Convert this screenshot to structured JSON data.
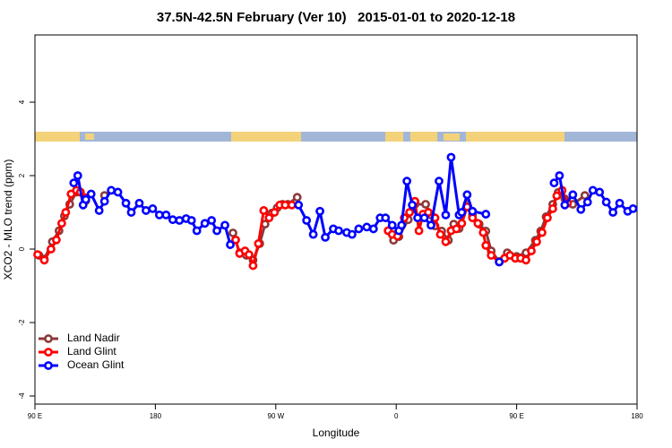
{
  "chart_data": {
    "type": "line",
    "title": "37.5N-42.5N February (Ver 10)   2015-01-01 to 2020-12-18",
    "xlabel": "Longitude",
    "ylabel": "XCO2 - MLO trend (ppm)",
    "xlim": [
      90,
      540
    ],
    "ylim": [
      -4.22,
      5.83
    ],
    "xticks": [
      {
        "value": 90,
        "label": "90 E"
      },
      180,
      {
        "value": 270,
        "label": "90 W"
      },
      {
        "value": 360,
        "label": "0"
      },
      {
        "value": 450,
        "label": "90 E"
      },
      {
        "value": 540,
        "label": "180"
      }
    ],
    "yticks": [
      -4,
      -2,
      0,
      2,
      4
    ],
    "legend": "bottomleft",
    "series": [
      {
        "name": "Land Nadir",
        "color": "#8b3a3a",
        "x": [
          93,
          97,
          103,
          108,
          112,
          116,
          121,
          124,
          128,
          135,
          142,
          200,
          238,
          243,
          248,
          253,
          258,
          262,
          267,
          271,
          275,
          279,
          286,
          320,
          354,
          358,
          362,
          369,
          374,
          382,
          386,
          389,
          394,
          399,
          403,
          407,
          413,
          417,
          422,
          427,
          431,
          437,
          443,
          450,
          457,
          464,
          468,
          472,
          477,
          481,
          486,
          492,
          501
        ],
        "values": [
          -0.17,
          -0.27,
          0.2,
          0.5,
          0.9,
          1.22,
          1.55,
          1.55,
          1.32,
          null,
          1.46,
          null,
          0.44,
          -0.1,
          -0.17,
          -0.3,
          0.15,
          0.68,
          0.98,
          1.12,
          1.22,
          1.22,
          1.41,
          null,
          0.5,
          0.24,
          0.34,
          0.8,
          1.22,
          1.22,
          0.93,
          0.63,
          0.49,
          0.24,
          0.68,
          0.56,
          1.22,
          0.93,
          0.68,
          0.49,
          -0.05,
          -0.34,
          -0.1,
          -0.2,
          -0.1,
          0.24,
          0.49,
          0.88,
          1.22,
          1.54,
          1.37,
          1.22,
          1.46
        ]
      },
      {
        "name": "Land Glint",
        "color": "#ff0000",
        "x": [
          92,
          97,
          102,
          106,
          110,
          113,
          117,
          121,
          124,
          128,
          180,
          240,
          243,
          247,
          250,
          253,
          257,
          261,
          265,
          269,
          273,
          277,
          282,
          320,
          354,
          357,
          361,
          366,
          370,
          374,
          377,
          380,
          384,
          389,
          393,
          397,
          401,
          405,
          409,
          413,
          417,
          421,
          425,
          427,
          431,
          437,
          441,
          445,
          449,
          453,
          457,
          461,
          465,
          469,
          473,
          477,
          480,
          484,
          488
        ],
        "values": [
          -0.15,
          -0.3,
          0.0,
          0.25,
          0.7,
          1.0,
          1.5,
          1.6,
          1.55,
          1.4,
          null,
          0.25,
          -0.12,
          -0.05,
          -0.15,
          -0.45,
          0.15,
          1.05,
          0.85,
          1.0,
          1.2,
          1.2,
          1.2,
          null,
          0.5,
          0.4,
          0.35,
          0.85,
          1.0,
          1.3,
          0.5,
          0.95,
          1.0,
          0.85,
          0.4,
          0.2,
          0.5,
          0.55,
          0.7,
          1.15,
          0.85,
          0.7,
          0.45,
          0.1,
          -0.17,
          -0.35,
          -0.25,
          -0.17,
          -0.25,
          -0.25,
          -0.3,
          -0.05,
          0.2,
          0.45,
          0.85,
          1.1,
          1.45,
          1.6,
          1.25
        ]
      },
      {
        "name": "Ocean Glint",
        "color": "#0000ff",
        "x": [
          119,
          122,
          126,
          128,
          132,
          138,
          142,
          147,
          152,
          158,
          162,
          168,
          173,
          178,
          183,
          188,
          193,
          198,
          203,
          207,
          211,
          217,
          222,
          226,
          232,
          236,
          260,
          287,
          293,
          298,
          303,
          307,
          313,
          317,
          323,
          327,
          332,
          338,
          343,
          348,
          352,
          357,
          362,
          364,
          368,
          372,
          376,
          381,
          386,
          392,
          397,
          401,
          407,
          409,
          413,
          417,
          427,
          432,
          437,
          460,
          478,
          482,
          486,
          492,
          498,
          503,
          507,
          512,
          517,
          522,
          527,
          533,
          537
        ],
        "values": [
          1.8,
          2.0,
          1.2,
          1.35,
          1.5,
          1.05,
          1.3,
          1.6,
          1.55,
          1.25,
          1.0,
          1.25,
          1.05,
          1.1,
          0.93,
          0.93,
          0.8,
          0.78,
          0.83,
          0.78,
          0.5,
          0.7,
          0.78,
          0.5,
          0.65,
          0.12,
          null,
          1.2,
          0.78,
          0.4,
          1.03,
          0.32,
          0.55,
          0.5,
          0.45,
          0.4,
          0.55,
          0.6,
          0.55,
          0.85,
          0.85,
          0.65,
          0.5,
          0.65,
          1.85,
          1.2,
          0.85,
          0.85,
          0.65,
          1.85,
          0.93,
          2.5,
          0.93,
          1.0,
          1.48,
          1.03,
          0.95,
          null,
          -0.35,
          null,
          1.8,
          2.0,
          1.2,
          1.48,
          1.08,
          1.28,
          1.6,
          1.55,
          1.28,
          1.0,
          1.25,
          1.03,
          1.1
        ]
      }
    ]
  }
}
